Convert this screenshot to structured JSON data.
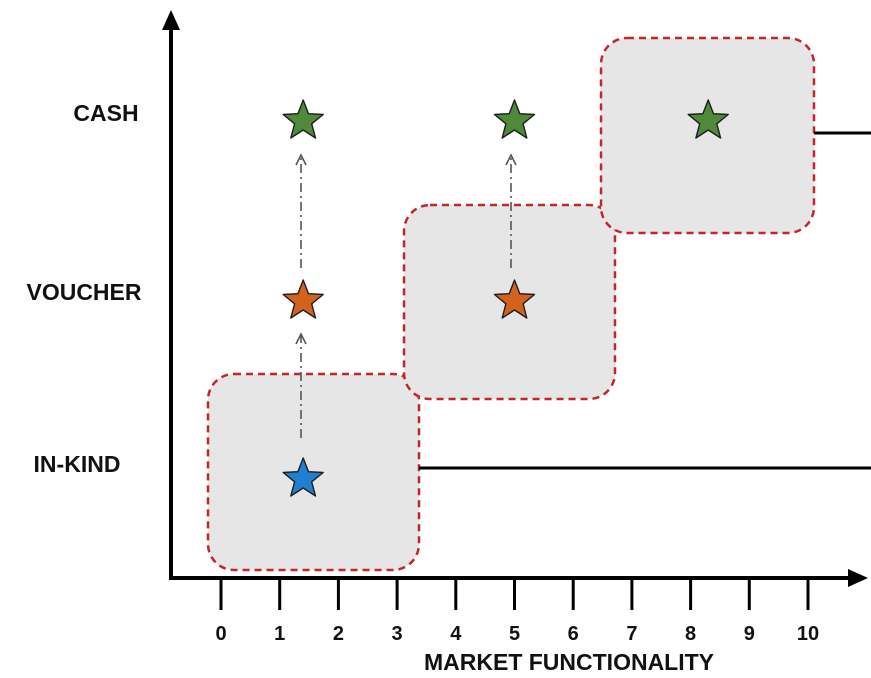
{
  "y_axis": {
    "labels": [
      "CASH",
      "VOUCHER",
      "IN-KIND"
    ]
  },
  "x_axis": {
    "title": "MARKET FUNCTIONALITY",
    "ticks": [
      "0",
      "1",
      "2",
      "3",
      "4",
      "5",
      "6",
      "7",
      "8",
      "9",
      "10"
    ]
  },
  "colors": {
    "box_fill": "#e6e6e6",
    "box_border": "#c0262b",
    "cash_star": "#4f8a3a",
    "voucher_star": "#d4621f",
    "inkind_star": "#1f7fd0"
  },
  "stars": [
    {
      "level": "IN-KIND",
      "market_functionality": 1.4,
      "color": "inkind_star"
    },
    {
      "level": "VOUCHER",
      "market_functionality": 1.4,
      "color": "voucher_star"
    },
    {
      "level": "CASH",
      "market_functionality": 1.4,
      "color": "cash_star"
    },
    {
      "level": "VOUCHER",
      "market_functionality": 5.0,
      "color": "voucher_star"
    },
    {
      "level": "CASH",
      "market_functionality": 5.0,
      "color": "cash_star"
    },
    {
      "level": "CASH",
      "market_functionality": 8.3,
      "color": "cash_star"
    }
  ]
}
